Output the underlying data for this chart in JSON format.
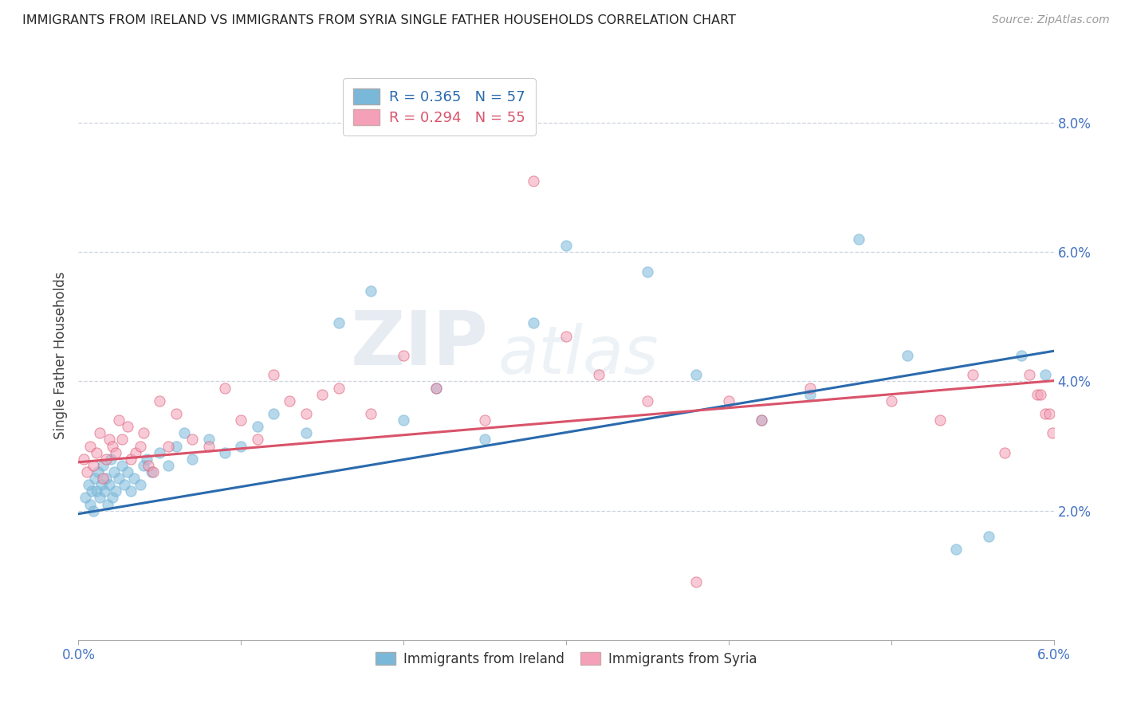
{
  "title": "IMMIGRANTS FROM IRELAND VS IMMIGRANTS FROM SYRIA SINGLE FATHER HOUSEHOLDS CORRELATION CHART",
  "source": "Source: ZipAtlas.com",
  "ylabel": "Single Father Households",
  "legend_label1": "Immigrants from Ireland",
  "legend_label2": "Immigrants from Syria",
  "r1": "R = 0.365",
  "n1": "N = 57",
  "r2": "R = 0.294",
  "n2": "N = 55",
  "xlim": [
    0.0,
    6.0
  ],
  "ylim": [
    0.0,
    8.8
  ],
  "yticks": [
    2.0,
    4.0,
    6.0,
    8.0
  ],
  "color_ireland": "#7ab8d9",
  "color_syria": "#f4a0b8",
  "color_ireland_line": "#2a6aad",
  "color_syria_line": "#d9536a",
  "ireland_scatter_x": [
    0.04,
    0.06,
    0.07,
    0.08,
    0.09,
    0.1,
    0.11,
    0.12,
    0.13,
    0.14,
    0.15,
    0.16,
    0.17,
    0.18,
    0.19,
    0.2,
    0.21,
    0.22,
    0.23,
    0.25,
    0.27,
    0.28,
    0.3,
    0.32,
    0.34,
    0.38,
    0.4,
    0.42,
    0.45,
    0.5,
    0.55,
    0.6,
    0.65,
    0.7,
    0.8,
    0.9,
    1.0,
    1.1,
    1.2,
    1.4,
    1.6,
    1.8,
    2.0,
    2.2,
    2.5,
    2.8,
    3.0,
    3.5,
    3.8,
    4.2,
    4.5,
    4.8,
    5.1,
    5.4,
    5.6,
    5.8,
    5.95
  ],
  "ireland_scatter_y": [
    2.2,
    2.4,
    2.1,
    2.3,
    2.0,
    2.5,
    2.3,
    2.6,
    2.2,
    2.4,
    2.7,
    2.3,
    2.5,
    2.1,
    2.4,
    2.8,
    2.2,
    2.6,
    2.3,
    2.5,
    2.7,
    2.4,
    2.6,
    2.3,
    2.5,
    2.4,
    2.7,
    2.8,
    2.6,
    2.9,
    2.7,
    3.0,
    3.2,
    2.8,
    3.1,
    2.9,
    3.0,
    3.3,
    3.5,
    3.2,
    4.9,
    5.4,
    3.4,
    3.9,
    3.1,
    4.9,
    6.1,
    5.7,
    4.1,
    3.4,
    3.8,
    6.2,
    4.4,
    1.4,
    1.6,
    4.4,
    4.1
  ],
  "syria_scatter_x": [
    0.03,
    0.05,
    0.07,
    0.09,
    0.11,
    0.13,
    0.15,
    0.17,
    0.19,
    0.21,
    0.23,
    0.25,
    0.27,
    0.3,
    0.32,
    0.35,
    0.38,
    0.4,
    0.43,
    0.46,
    0.5,
    0.55,
    0.6,
    0.7,
    0.8,
    0.9,
    1.0,
    1.1,
    1.2,
    1.3,
    1.4,
    1.5,
    1.6,
    1.8,
    2.0,
    2.2,
    2.5,
    2.8,
    3.0,
    3.2,
    3.5,
    3.8,
    4.0,
    4.2,
    4.5,
    5.0,
    5.3,
    5.5,
    5.7,
    5.85,
    5.9,
    5.92,
    5.95,
    5.97,
    5.99
  ],
  "syria_scatter_y": [
    2.8,
    2.6,
    3.0,
    2.7,
    2.9,
    3.2,
    2.5,
    2.8,
    3.1,
    3.0,
    2.9,
    3.4,
    3.1,
    3.3,
    2.8,
    2.9,
    3.0,
    3.2,
    2.7,
    2.6,
    3.7,
    3.0,
    3.5,
    3.1,
    3.0,
    3.9,
    3.4,
    3.1,
    4.1,
    3.7,
    3.5,
    3.8,
    3.9,
    3.5,
    4.4,
    3.9,
    3.4,
    7.1,
    4.7,
    4.1,
    3.7,
    0.9,
    3.7,
    3.4,
    3.9,
    3.7,
    3.4,
    4.1,
    2.9,
    4.1,
    3.8,
    3.8,
    3.5,
    3.5,
    3.2
  ]
}
